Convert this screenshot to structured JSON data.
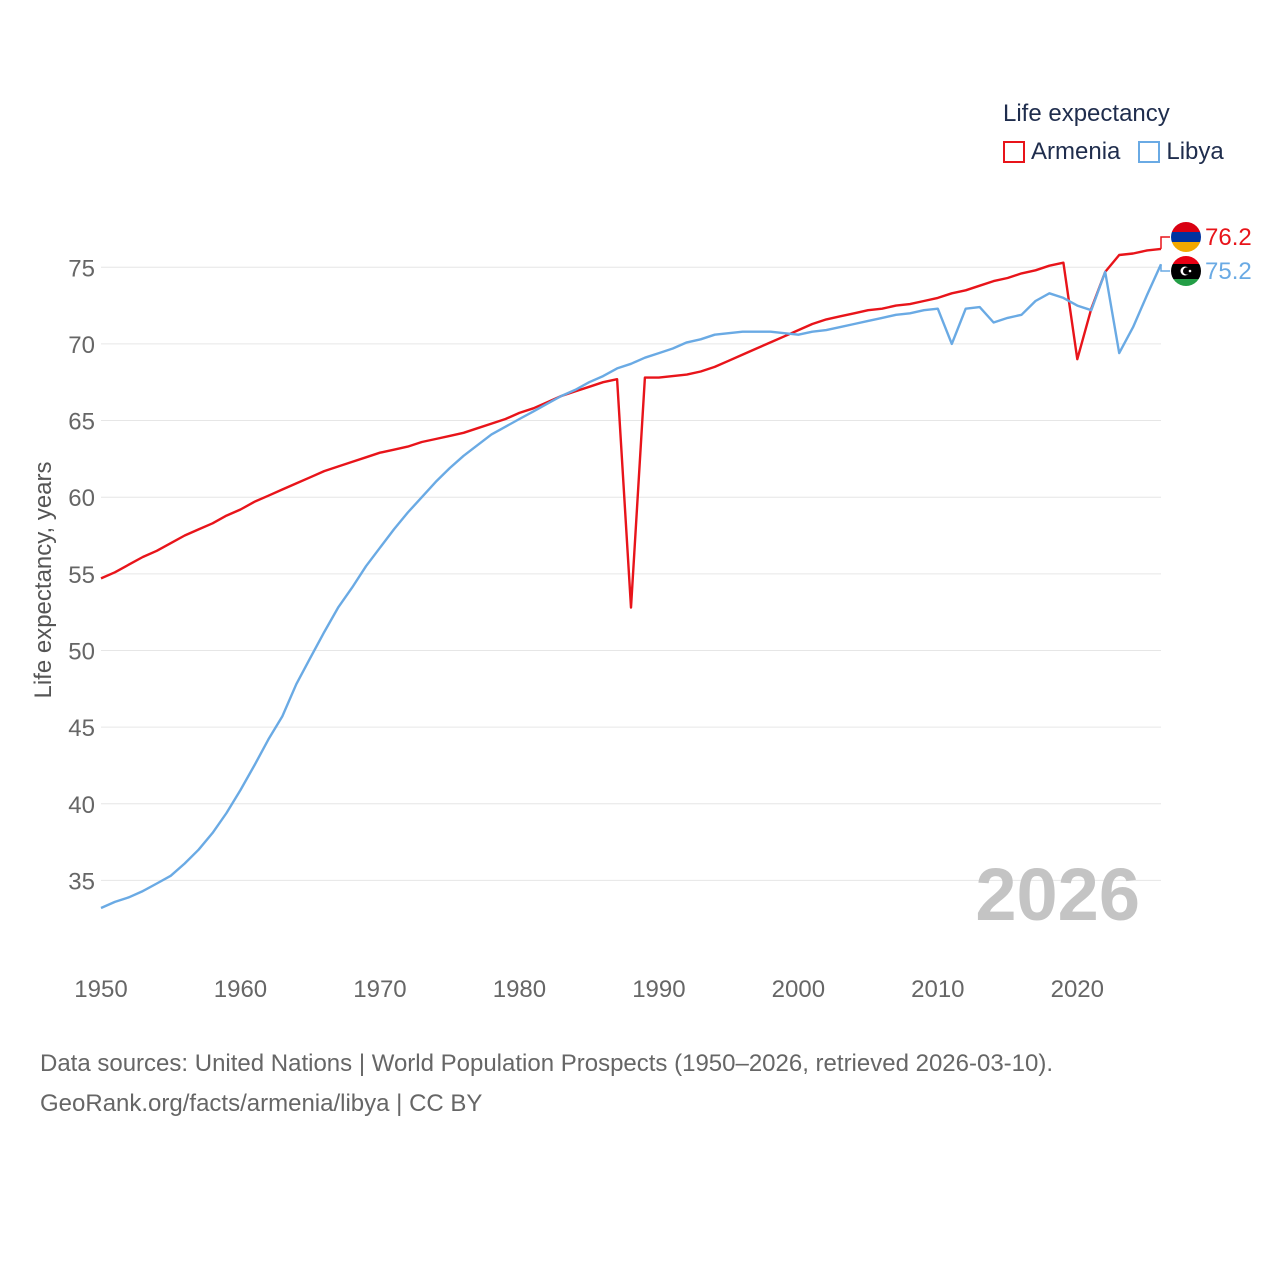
{
  "legend": {
    "title": "Life expectancy",
    "items": [
      {
        "label": "Armenia",
        "color": "#e8141a"
      },
      {
        "label": "Libya",
        "color": "#6aaae4"
      }
    ]
  },
  "footer": {
    "sources": "Data sources: United Nations | World Population Prospects (1950–2026, retrieved 2026-03-10).",
    "credit": "GeoRank.org/facts/armenia/libya | CC BY"
  },
  "chart_data": {
    "type": "line",
    "title": "Life expectancy",
    "xlabel": "",
    "ylabel": "Life expectancy, years",
    "year_label": "2026",
    "xlim": [
      1950,
      2026
    ],
    "ylim": [
      32,
      78
    ],
    "x_ticks": [
      1950,
      1960,
      1970,
      1980,
      1990,
      2000,
      2010,
      2020
    ],
    "y_ticks": [
      35,
      40,
      45,
      50,
      55,
      60,
      65,
      70,
      75
    ],
    "grid": true,
    "legend_position": "top-right",
    "x": [
      1950,
      1951,
      1952,
      1953,
      1954,
      1955,
      1956,
      1957,
      1958,
      1959,
      1960,
      1961,
      1962,
      1963,
      1964,
      1965,
      1966,
      1967,
      1968,
      1969,
      1970,
      1971,
      1972,
      1973,
      1974,
      1975,
      1976,
      1977,
      1978,
      1979,
      1980,
      1981,
      1982,
      1983,
      1984,
      1985,
      1986,
      1987,
      1988,
      1989,
      1990,
      1991,
      1992,
      1993,
      1994,
      1995,
      1996,
      1997,
      1998,
      1999,
      2000,
      2001,
      2002,
      2003,
      2004,
      2005,
      2006,
      2007,
      2008,
      2009,
      2010,
      2011,
      2012,
      2013,
      2014,
      2015,
      2016,
      2017,
      2018,
      2019,
      2020,
      2021,
      2022,
      2023,
      2024,
      2025,
      2026
    ],
    "series": [
      {
        "name": "Armenia",
        "color": "#e8141a",
        "end_label": "76.2",
        "values": [
          54.7,
          55.1,
          55.6,
          56.1,
          56.5,
          57.0,
          57.5,
          57.9,
          58.3,
          58.8,
          59.2,
          59.7,
          60.1,
          60.5,
          60.9,
          61.3,
          61.7,
          62.0,
          62.3,
          62.6,
          62.9,
          63.1,
          63.3,
          63.6,
          63.8,
          64.0,
          64.2,
          64.5,
          64.8,
          65.1,
          65.5,
          65.8,
          66.2,
          66.6,
          66.9,
          67.2,
          67.5,
          67.7,
          52.8,
          67.8,
          67.8,
          67.9,
          68.0,
          68.2,
          68.5,
          68.9,
          69.3,
          69.7,
          70.1,
          70.5,
          70.9,
          71.3,
          71.6,
          71.8,
          72.0,
          72.2,
          72.3,
          72.5,
          72.6,
          72.8,
          73.0,
          73.3,
          73.5,
          73.8,
          74.1,
          74.3,
          74.6,
          74.8,
          75.1,
          75.3,
          69.0,
          72.3,
          74.7,
          75.8,
          75.9,
          76.1,
          76.2
        ]
      },
      {
        "name": "Libya",
        "color": "#6aaae4",
        "end_label": "75.2",
        "values": [
          33.2,
          33.6,
          33.9,
          34.3,
          34.8,
          35.3,
          36.1,
          37.0,
          38.1,
          39.4,
          40.9,
          42.5,
          44.2,
          45.7,
          47.8,
          49.5,
          51.2,
          52.8,
          54.1,
          55.5,
          56.7,
          57.9,
          59.0,
          60.0,
          61.0,
          61.9,
          62.7,
          63.4,
          64.1,
          64.6,
          65.1,
          65.6,
          66.1,
          66.6,
          67.0,
          67.5,
          67.9,
          68.4,
          68.7,
          69.1,
          69.4,
          69.7,
          70.1,
          70.3,
          70.6,
          70.7,
          70.8,
          70.8,
          70.8,
          70.7,
          70.6,
          70.8,
          70.9,
          71.1,
          71.3,
          71.5,
          71.7,
          71.9,
          72.0,
          72.2,
          72.3,
          70.0,
          72.3,
          72.4,
          71.4,
          71.7,
          71.9,
          72.8,
          73.3,
          73.0,
          72.5,
          72.2,
          74.7,
          69.4,
          71.1,
          73.2,
          75.2
        ]
      }
    ]
  }
}
